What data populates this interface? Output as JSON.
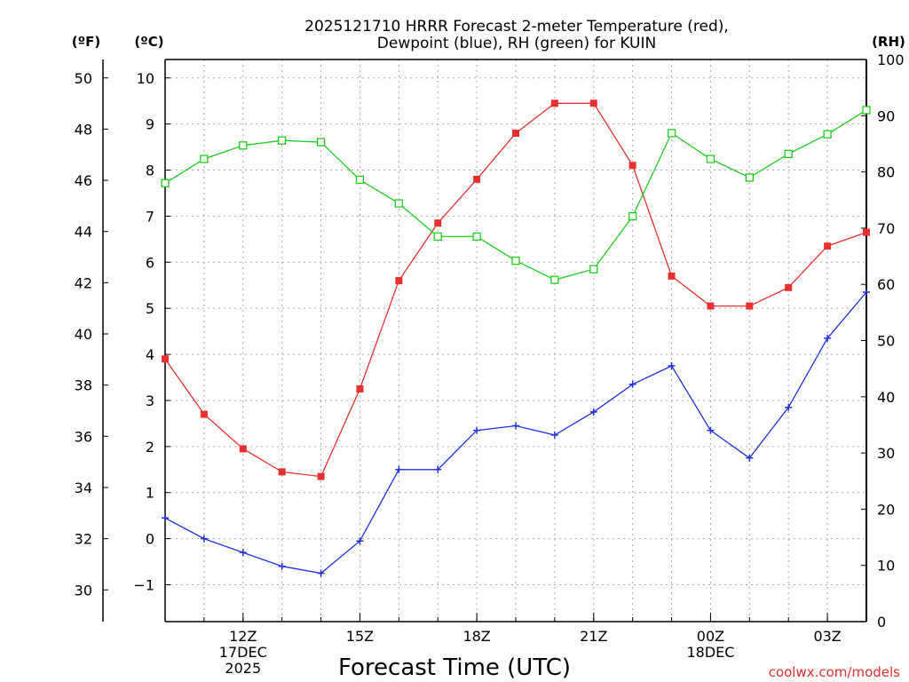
{
  "chart_data": {
    "type": "line",
    "title": [
      "2025121710 HRRR Forecast 2-meter Temperature (red),",
      "Dewpoint (blue), RH (green) for KUIN"
    ],
    "xlabel": "Forecast Time (UTC)",
    "credit": "coolwx.com/models",
    "units": {
      "fahrenheit": "(ºF)",
      "celsius": "(ºC)",
      "rh": "(RH)"
    },
    "hours": [
      10,
      11,
      12,
      13,
      14,
      15,
      16,
      17,
      18,
      19,
      20,
      21,
      22,
      23,
      24,
      25,
      26,
      27,
      28
    ],
    "x_ticks": [
      {
        "hour": 12,
        "lines": [
          "12Z",
          "17DEC",
          "2025"
        ]
      },
      {
        "hour": 15,
        "lines": [
          "15Z"
        ]
      },
      {
        "hour": 18,
        "lines": [
          "18Z"
        ]
      },
      {
        "hour": 21,
        "lines": [
          "21Z"
        ]
      },
      {
        "hour": 24,
        "lines": [
          "00Z",
          "18DEC"
        ]
      },
      {
        "hour": 27,
        "lines": [
          "03Z"
        ]
      }
    ],
    "xlim": [
      10,
      28
    ],
    "y_left_celsius": {
      "range": [
        -1.8,
        10.4
      ],
      "ticks": [
        "−1",
        "0",
        "1",
        "2",
        "3",
        "4",
        "5",
        "6",
        "7",
        "8",
        "9",
        "10"
      ]
    },
    "y_left_fahrenheit": {
      "range": [
        28.76,
        50.72
      ],
      "ticks": [
        "30",
        "32",
        "34",
        "36",
        "38",
        "40",
        "42",
        "44",
        "46",
        "48",
        "50"
      ]
    },
    "y_right_rh": {
      "range": [
        0,
        100
      ],
      "ticks": [
        "0",
        "10",
        "20",
        "30",
        "40",
        "50",
        "60",
        "70",
        "80",
        "90",
        "100"
      ]
    },
    "series": [
      {
        "name": "Temperature",
        "axis": "celsius",
        "color": "#e83030",
        "marker": "filled-square",
        "values": [
          3.9,
          2.7,
          1.95,
          1.45,
          1.35,
          3.25,
          5.6,
          6.85,
          7.8,
          8.8,
          9.45,
          9.45,
          8.1,
          5.7,
          5.05,
          5.05,
          5.45,
          6.35,
          6.65
        ]
      },
      {
        "name": "Dewpoint",
        "axis": "celsius",
        "color": "#2030e0",
        "marker": "plus",
        "values": [
          0.45,
          0.0,
          -0.3,
          -0.6,
          -0.75,
          -0.05,
          1.5,
          1.5,
          2.35,
          2.45,
          2.25,
          2.75,
          3.35,
          3.75,
          2.35,
          1.75,
          2.85,
          4.35,
          5.35
        ]
      },
      {
        "name": "RH",
        "axis": "rh",
        "color": "#20cc20",
        "marker": "open-square",
        "values": [
          78.0,
          82.3,
          84.7,
          85.6,
          85.3,
          78.6,
          74.4,
          68.5,
          68.5,
          64.2,
          60.8,
          62.7,
          72.1,
          86.9,
          82.3,
          79.0,
          83.2,
          86.7,
          91.0
        ]
      }
    ],
    "grid": true
  }
}
